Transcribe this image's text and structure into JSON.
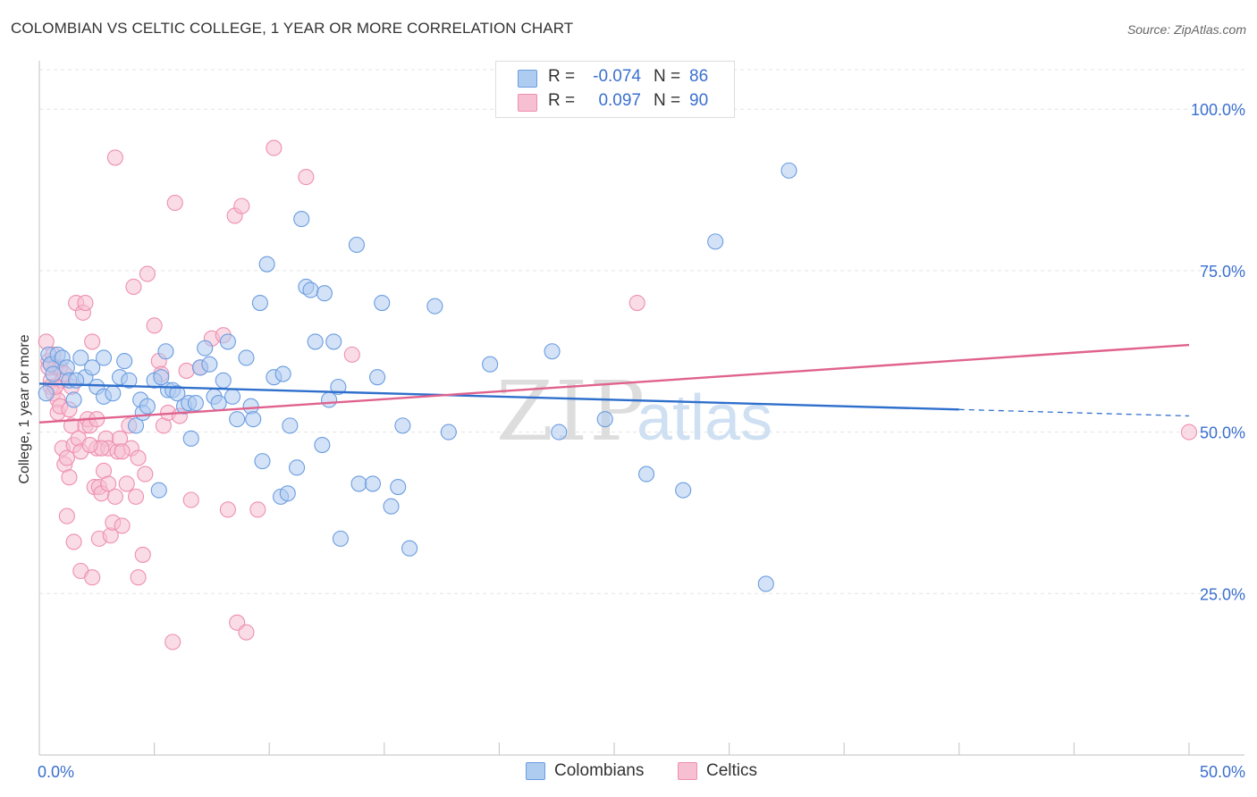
{
  "title": "COLOMBIAN VS CELTIC COLLEGE, 1 YEAR OR MORE CORRELATION CHART",
  "source": "Source: ZipAtlas.com",
  "watermark": {
    "part1": "ZIP",
    "part2": "atlas"
  },
  "legend": {
    "rows": [
      {
        "r_label": "R =",
        "r_value": "-0.074",
        "n_label": "N =",
        "n_value": "86"
      },
      {
        "r_label": "R =",
        "r_value": "0.097",
        "n_label": "N =",
        "n_value": "90"
      }
    ]
  },
  "chart_data": {
    "type": "scatter",
    "title": "COLOMBIAN VS CELTIC COLLEGE, 1 YEAR OR MORE CORRELATION CHART",
    "xlabel": "",
    "ylabel": "College, 1 year or more",
    "xlim": [
      0,
      50
    ],
    "ylim": [
      0,
      107.5
    ],
    "x_tick_labels": [
      {
        "value": 0,
        "label": "0.0%"
      },
      {
        "value": 50,
        "label": "50.0%"
      }
    ],
    "y_tick_labels": [
      {
        "value": 100,
        "label": "100.0%"
      },
      {
        "value": 75,
        "label": "75.0%"
      },
      {
        "value": 50,
        "label": "50.0%"
      },
      {
        "value": 25,
        "label": "25.0%"
      }
    ],
    "grid": true,
    "series": [
      {
        "name": "Colombians",
        "color": "#6b9de0",
        "fill": "#aecbf0",
        "trend_color": "#2f6fcc",
        "trend": {
          "x0": 0,
          "y0": 57.5,
          "x1": 40,
          "y1": 53.5,
          "dash_x1": 50,
          "dash_y1": 52.5
        },
        "points": [
          [
            0.4,
            62
          ],
          [
            0.5,
            60.5
          ],
          [
            0.6,
            59
          ],
          [
            0.8,
            62
          ],
          [
            1.0,
            61.5
          ],
          [
            1.2,
            60
          ],
          [
            1.3,
            58
          ],
          [
            1.5,
            55
          ],
          [
            1.8,
            61.5
          ],
          [
            2.0,
            58.5
          ],
          [
            2.3,
            60
          ],
          [
            2.5,
            57
          ],
          [
            2.8,
            61.5
          ],
          [
            2.8,
            55.5
          ],
          [
            3.2,
            56
          ],
          [
            3.5,
            58.5
          ],
          [
            3.7,
            61
          ],
          [
            3.9,
            58
          ],
          [
            4.2,
            51
          ],
          [
            4.4,
            55
          ],
          [
            4.5,
            53
          ],
          [
            4.7,
            54
          ],
          [
            5.0,
            58
          ],
          [
            5.2,
            41
          ],
          [
            5.3,
            58.5
          ],
          [
            5.5,
            62.5
          ],
          [
            5.6,
            56.5
          ],
          [
            5.8,
            56.5
          ],
          [
            6.0,
            56
          ],
          [
            6.3,
            54
          ],
          [
            6.5,
            54.5
          ],
          [
            6.6,
            49
          ],
          [
            6.8,
            54.5
          ],
          [
            7.0,
            60
          ],
          [
            7.2,
            63
          ],
          [
            7.4,
            60.5
          ],
          [
            7.6,
            55.5
          ],
          [
            7.8,
            54.5
          ],
          [
            8.0,
            58
          ],
          [
            8.2,
            64
          ],
          [
            8.4,
            55.5
          ],
          [
            8.6,
            52
          ],
          [
            9.0,
            61.5
          ],
          [
            9.2,
            54
          ],
          [
            9.3,
            52
          ],
          [
            9.6,
            70
          ],
          [
            9.7,
            45.5
          ],
          [
            9.9,
            76
          ],
          [
            10.2,
            58.5
          ],
          [
            10.5,
            40
          ],
          [
            10.6,
            59
          ],
          [
            10.8,
            40.5
          ],
          [
            10.9,
            51
          ],
          [
            11.2,
            44.5
          ],
          [
            11.4,
            83
          ],
          [
            11.6,
            72.5
          ],
          [
            11.8,
            72
          ],
          [
            12.0,
            64
          ],
          [
            12.3,
            48
          ],
          [
            12.4,
            71.5
          ],
          [
            12.6,
            55
          ],
          [
            12.8,
            64
          ],
          [
            13.0,
            57
          ],
          [
            13.1,
            33.5
          ],
          [
            13.8,
            79
          ],
          [
            13.9,
            42
          ],
          [
            14.5,
            42
          ],
          [
            14.7,
            58.5
          ],
          [
            14.9,
            70
          ],
          [
            15.3,
            38.5
          ],
          [
            15.6,
            41.5
          ],
          [
            15.8,
            51
          ],
          [
            16.1,
            32
          ],
          [
            17.2,
            69.5
          ],
          [
            17.8,
            50
          ],
          [
            19.6,
            60.5
          ],
          [
            22.3,
            62.5
          ],
          [
            22.6,
            50
          ],
          [
            24.6,
            52
          ],
          [
            26.4,
            43.5
          ],
          [
            28.0,
            41
          ],
          [
            29.4,
            79.5
          ],
          [
            31.6,
            26.5
          ],
          [
            32.6,
            90.5
          ],
          [
            0.3,
            56
          ],
          [
            1.6,
            58
          ]
        ]
      },
      {
        "name": "Celtics",
        "color": "#ee8fb0",
        "fill": "#f6bfd2",
        "trend_color": "#e0628e",
        "trend": {
          "x0": 0,
          "y0": 51.5,
          "x1": 50,
          "y1": 63.5
        },
        "points": [
          [
            0.3,
            64
          ],
          [
            0.4,
            61
          ],
          [
            0.5,
            58
          ],
          [
            0.5,
            57
          ],
          [
            0.6,
            56
          ],
          [
            0.7,
            60
          ],
          [
            0.8,
            55
          ],
          [
            0.8,
            53
          ],
          [
            0.9,
            60
          ],
          [
            1.0,
            58
          ],
          [
            1.0,
            47.5
          ],
          [
            1.1,
            45
          ],
          [
            1.2,
            46
          ],
          [
            1.2,
            37
          ],
          [
            1.3,
            43
          ],
          [
            1.4,
            57
          ],
          [
            1.4,
            51
          ],
          [
            1.5,
            48
          ],
          [
            1.5,
            33
          ],
          [
            1.6,
            70
          ],
          [
            1.7,
            49
          ],
          [
            1.8,
            47
          ],
          [
            1.8,
            28.5
          ],
          [
            1.9,
            68.5
          ],
          [
            2.0,
            70
          ],
          [
            2.0,
            51
          ],
          [
            2.1,
            52
          ],
          [
            2.2,
            51
          ],
          [
            2.3,
            64
          ],
          [
            2.3,
            27.5
          ],
          [
            2.4,
            41.5
          ],
          [
            2.5,
            52
          ],
          [
            2.5,
            47.5
          ],
          [
            2.6,
            41.5
          ],
          [
            2.6,
            33.5
          ],
          [
            2.7,
            40.5
          ],
          [
            2.8,
            44
          ],
          [
            2.9,
            49
          ],
          [
            3.0,
            42
          ],
          [
            3.0,
            47.5
          ],
          [
            3.1,
            34
          ],
          [
            3.2,
            36
          ],
          [
            3.3,
            40
          ],
          [
            3.3,
            92.5
          ],
          [
            3.4,
            47
          ],
          [
            3.5,
            49
          ],
          [
            3.6,
            35.5
          ],
          [
            3.8,
            42
          ],
          [
            3.9,
            51
          ],
          [
            4.0,
            47.5
          ],
          [
            4.1,
            72.5
          ],
          [
            4.2,
            40
          ],
          [
            4.3,
            27.5
          ],
          [
            4.3,
            46
          ],
          [
            4.5,
            31
          ],
          [
            4.6,
            43.5
          ],
          [
            4.7,
            74.5
          ],
          [
            5.0,
            66.5
          ],
          [
            5.2,
            61
          ],
          [
            5.3,
            59
          ],
          [
            5.4,
            51
          ],
          [
            5.6,
            53
          ],
          [
            5.8,
            17.5
          ],
          [
            5.9,
            85.5
          ],
          [
            6.1,
            52.5
          ],
          [
            6.4,
            59.5
          ],
          [
            6.6,
            39.5
          ],
          [
            7.0,
            60
          ],
          [
            7.5,
            64.5
          ],
          [
            8.0,
            65
          ],
          [
            8.2,
            38
          ],
          [
            8.5,
            83.5
          ],
          [
            8.6,
            20.5
          ],
          [
            8.8,
            85
          ],
          [
            9.0,
            19
          ],
          [
            9.5,
            38
          ],
          [
            10.2,
            94
          ],
          [
            11.6,
            89.5
          ],
          [
            13.6,
            62
          ],
          [
            26.0,
            70
          ],
          [
            50.0,
            50
          ],
          [
            0.6,
            62
          ],
          [
            0.9,
            54
          ],
          [
            1.1,
            59
          ],
          [
            0.4,
            60
          ],
          [
            2.7,
            47.5
          ],
          [
            3.6,
            47
          ],
          [
            1.3,
            53.5
          ],
          [
            2.2,
            48
          ],
          [
            0.7,
            57
          ]
        ]
      }
    ]
  },
  "bottom_legend": [
    {
      "label": "Colombians"
    },
    {
      "label": "Celtics"
    }
  ],
  "colors": {
    "blue_fill": "#aecbf0",
    "blue_stroke": "#6b9de0",
    "pink_fill": "#f6bfd2",
    "pink_stroke": "#ee8fb0",
    "tick_label": "#3a6fcf",
    "grid": "#e4e4e4"
  }
}
